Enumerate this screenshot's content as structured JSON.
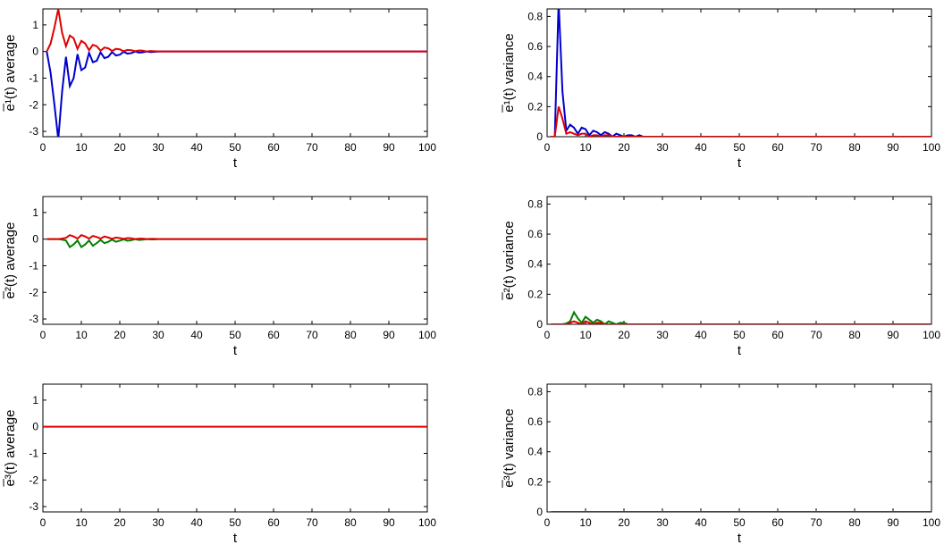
{
  "chart_data": [
    {
      "type": "line",
      "xlabel": "t",
      "ylabel": "e̅¹(t) average",
      "xlim": [
        0,
        100
      ],
      "ylim": [
        -3.2,
        1.6
      ],
      "xticks": [
        0,
        10,
        20,
        30,
        40,
        50,
        60,
        70,
        80,
        90,
        100
      ],
      "yticks": [
        -3,
        -2,
        -1,
        0,
        1
      ],
      "x": [
        1,
        2,
        3,
        4,
        5,
        6,
        7,
        8,
        9,
        10,
        11,
        12,
        13,
        14,
        15,
        16,
        17,
        18,
        19,
        20,
        21,
        22,
        23,
        24,
        25,
        26,
        27,
        28,
        29,
        30,
        100
      ],
      "series": [
        {
          "color": "#0000cc",
          "values": [
            0,
            -0.8,
            -2,
            -3.3,
            -1.5,
            -0.2,
            -1.3,
            -1,
            -0.1,
            -0.7,
            -0.6,
            -0.05,
            -0.4,
            -0.35,
            -0.03,
            -0.25,
            -0.2,
            -0.02,
            -0.15,
            -0.12,
            -0.01,
            -0.08,
            -0.06,
            0,
            -0.04,
            -0.03,
            0,
            -0.02,
            -0.01,
            0,
            0
          ]
        },
        {
          "color": "#e00000",
          "values": [
            0,
            0.3,
            0.9,
            1.6,
            0.7,
            0.2,
            0.6,
            0.5,
            0.1,
            0.4,
            0.3,
            0.05,
            0.25,
            0.2,
            0.03,
            0.15,
            0.12,
            0.02,
            0.1,
            0.08,
            0.01,
            0.06,
            0.05,
            0.01,
            0.04,
            0.03,
            0,
            0.02,
            0.01,
            0,
            0
          ]
        }
      ]
    },
    {
      "type": "line",
      "xlabel": "t",
      "ylabel": "e̅¹(t) variance",
      "xlim": [
        0,
        100
      ],
      "ylim": [
        0,
        0.85
      ],
      "xticks": [
        0,
        10,
        20,
        30,
        40,
        50,
        60,
        70,
        80,
        90,
        100
      ],
      "yticks": [
        0,
        0.2,
        0.4,
        0.6,
        0.8
      ],
      "x": [
        1,
        2,
        3,
        4,
        5,
        6,
        7,
        8,
        9,
        10,
        11,
        12,
        13,
        14,
        15,
        16,
        17,
        18,
        19,
        20,
        21,
        22,
        23,
        24,
        25,
        26,
        27,
        28,
        29,
        30,
        100
      ],
      "series": [
        {
          "color": "#0000cc",
          "values": [
            0,
            0,
            0.9,
            0.3,
            0.04,
            0.08,
            0.06,
            0.02,
            0.06,
            0.05,
            0.01,
            0.04,
            0.03,
            0.01,
            0.03,
            0.02,
            0,
            0.02,
            0.01,
            0,
            0.01,
            0.01,
            0,
            0.01,
            0,
            0,
            0,
            0,
            0,
            0,
            0
          ]
        },
        {
          "color": "#e00000",
          "values": [
            0,
            0,
            0.2,
            0.12,
            0.02,
            0.03,
            0.02,
            0.01,
            0.02,
            0.02,
            0,
            0.01,
            0.01,
            0,
            0.01,
            0.01,
            0,
            0,
            0,
            0,
            0,
            0,
            0,
            0,
            0,
            0,
            0,
            0,
            0,
            0,
            0
          ]
        }
      ]
    },
    {
      "type": "line",
      "xlabel": "t",
      "ylabel": "e̅²(t) average",
      "xlim": [
        0,
        100
      ],
      "ylim": [
        -3.2,
        1.6
      ],
      "xticks": [
        0,
        10,
        20,
        30,
        40,
        50,
        60,
        70,
        80,
        90,
        100
      ],
      "yticks": [
        -3,
        -2,
        -1,
        0,
        1
      ],
      "x": [
        1,
        2,
        3,
        4,
        5,
        6,
        7,
        8,
        9,
        10,
        11,
        12,
        13,
        14,
        15,
        16,
        17,
        18,
        19,
        20,
        21,
        22,
        23,
        24,
        25,
        26,
        27,
        28,
        29,
        30,
        100
      ],
      "series": [
        {
          "color": "#008000",
          "values": [
            0,
            0,
            0,
            0,
            -0.02,
            -0.05,
            -0.3,
            -0.2,
            -0.05,
            -0.3,
            -0.2,
            -0.05,
            -0.25,
            -0.15,
            -0.03,
            -0.15,
            -0.1,
            -0.02,
            -0.1,
            -0.06,
            -0.01,
            -0.06,
            -0.04,
            0,
            -0.03,
            -0.02,
            0,
            -0.01,
            -0.01,
            0,
            0
          ]
        },
        {
          "color": "#e00000",
          "values": [
            0,
            0,
            0,
            0,
            0.02,
            0.05,
            0.15,
            0.1,
            0.02,
            0.15,
            0.1,
            0.02,
            0.12,
            0.08,
            0.02,
            0.1,
            0.06,
            0.01,
            0.06,
            0.04,
            0.01,
            0.04,
            0.03,
            0,
            0.02,
            0.02,
            0,
            0.01,
            0.01,
            0,
            0
          ]
        }
      ]
    },
    {
      "type": "line",
      "xlabel": "t",
      "ylabel": "e̅²(t) variance",
      "xlim": [
        0,
        100
      ],
      "ylim": [
        0,
        0.85
      ],
      "xticks": [
        0,
        10,
        20,
        30,
        40,
        50,
        60,
        70,
        80,
        90,
        100
      ],
      "yticks": [
        0,
        0.2,
        0.4,
        0.6,
        0.8
      ],
      "x": [
        1,
        2,
        3,
        4,
        5,
        6,
        7,
        8,
        9,
        10,
        11,
        12,
        13,
        14,
        15,
        16,
        17,
        18,
        19,
        20,
        21,
        22,
        23,
        24,
        25,
        26,
        27,
        28,
        29,
        30,
        100
      ],
      "series": [
        {
          "color": "#008000",
          "values": [
            0,
            0,
            0,
            0,
            0.005,
            0.02,
            0.08,
            0.04,
            0.01,
            0.05,
            0.03,
            0.01,
            0.03,
            0.02,
            0,
            0.02,
            0.01,
            0,
            0.01,
            0.01,
            0,
            0,
            0,
            0,
            0,
            0,
            0,
            0,
            0,
            0,
            0
          ]
        },
        {
          "color": "#e00000",
          "values": [
            0,
            0,
            0,
            0,
            0,
            0.01,
            0.02,
            0.01,
            0,
            0.02,
            0.01,
            0,
            0.01,
            0.01,
            0,
            0,
            0,
            0,
            0,
            0,
            0,
            0,
            0,
            0,
            0,
            0,
            0,
            0,
            0,
            0,
            0
          ]
        }
      ]
    },
    {
      "type": "line",
      "xlabel": "t",
      "ylabel": "e̅³(t) average",
      "xlim": [
        0,
        100
      ],
      "ylim": [
        -3.2,
        1.6
      ],
      "xticks": [
        0,
        10,
        20,
        30,
        40,
        50,
        60,
        70,
        80,
        90,
        100
      ],
      "yticks": [
        -3,
        -2,
        -1,
        0,
        1
      ],
      "x": [
        0,
        100
      ],
      "series": [
        {
          "color": "#e00000",
          "values": [
            0,
            0
          ]
        }
      ]
    },
    {
      "type": "line",
      "xlabel": "t",
      "ylabel": "e̅³(t) variance",
      "xlim": [
        0,
        100
      ],
      "ylim": [
        0,
        0.85
      ],
      "xticks": [
        0,
        10,
        20,
        30,
        40,
        50,
        60,
        70,
        80,
        90,
        100
      ],
      "yticks": [
        0,
        0.2,
        0.4,
        0.6,
        0.8
      ],
      "x": [
        1,
        100
      ],
      "series": [
        {
          "color": "#e00000",
          "values": [
            0,
            0
          ]
        }
      ]
    }
  ]
}
